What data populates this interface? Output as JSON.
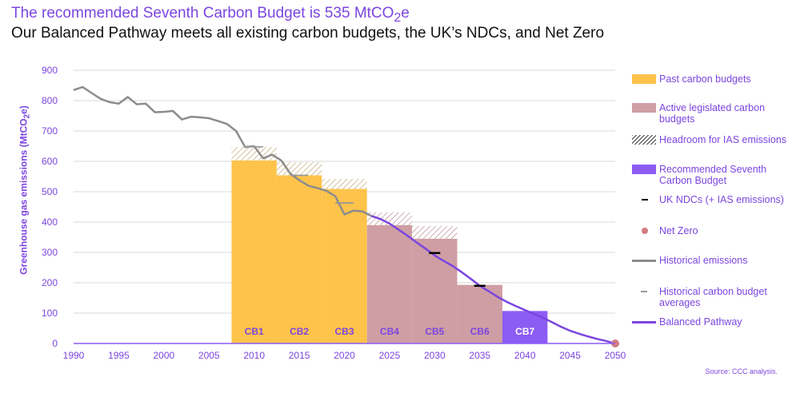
{
  "header": {
    "title_html": "The recommended Seventh Carbon Budget is 535 MtCO<sub>2</sub>e",
    "subtitle": "Our Balanced Pathway meets all existing carbon budgets, the UK’s NDCs, and Net Zero",
    "source": "Source: CCC analysis."
  },
  "chart_data": {
    "type": "bar",
    "title": "The recommended Seventh Carbon Budget is 535 MtCO2e",
    "ylabel_html": "Greenhouse gas emissions (MtCO<sub>2</sub>e)",
    "xlim": [
      1990,
      2050
    ],
    "ylim": [
      0,
      900
    ],
    "x_ticks": [
      "1990",
      "1995",
      "2000",
      "2005",
      "2010",
      "2015",
      "2020",
      "2025",
      "2030",
      "2035",
      "2040",
      "2045",
      "2050"
    ],
    "y_ticks": [
      "0",
      "100",
      "200",
      "300",
      "400",
      "500",
      "600",
      "700",
      "800",
      "900"
    ],
    "grid": true,
    "legend_position": "right",
    "colors": {
      "past": "#fdc34a",
      "active": "#cf9ea4",
      "recommended": "#8c5cf5",
      "historical": "#8c8c8c",
      "balanced": "#7b45e0",
      "ndc": "#000000",
      "netzero": "#d27b80",
      "budget_label": "#7b45e0",
      "budget_label_cb7": "#ffffff"
    },
    "budgets": [
      {
        "label": "CB1",
        "start": 2008,
        "end": 2012,
        "value": 603,
        "headroom": 44,
        "category": "past"
      },
      {
        "label": "CB2",
        "start": 2013,
        "end": 2017,
        "value": 554,
        "headroom": 43,
        "category": "past"
      },
      {
        "label": "CB3",
        "start": 2018,
        "end": 2022,
        "value": 509,
        "headroom": 33,
        "category": "past"
      },
      {
        "label": "CB4",
        "start": 2023,
        "end": 2027,
        "value": 390,
        "headroom": 42,
        "category": "active"
      },
      {
        "label": "CB5",
        "start": 2028,
        "end": 2032,
        "value": 345,
        "headroom": 42,
        "category": "active"
      },
      {
        "label": "CB6",
        "start": 2033,
        "end": 2037,
        "value": 193,
        "headroom": 0,
        "category": "active"
      },
      {
        "label": "CB7",
        "start": 2038,
        "end": 2042,
        "value": 107,
        "headroom": 0,
        "category": "recommended"
      }
    ],
    "historical_emissions": {
      "x": [
        1990,
        1991,
        1992,
        1993,
        1994,
        1995,
        1996,
        1997,
        1998,
        1999,
        2000,
        2001,
        2002,
        2003,
        2004,
        2005,
        2006,
        2007,
        2008,
        2009,
        2010,
        2011,
        2012,
        2013,
        2014,
        2015,
        2016,
        2017,
        2018,
        2019,
        2020,
        2021,
        2022,
        2023
      ],
      "y": [
        835,
        845,
        825,
        806,
        795,
        790,
        812,
        788,
        790,
        762,
        763,
        766,
        738,
        747,
        745,
        742,
        733,
        723,
        700,
        647,
        650,
        610,
        622,
        603,
        560,
        538,
        520,
        512,
        503,
        485,
        425,
        438,
        435,
        420
      ]
    },
    "historical_budget_averages": [
      {
        "start": 2009,
        "end": 2011,
        "value": 648
      },
      {
        "start": 2014,
        "end": 2016,
        "value": 554
      },
      {
        "start": 2019,
        "end": 2021,
        "value": 463
      }
    ],
    "ndcs": [
      {
        "x": 2030,
        "y": 298
      },
      {
        "x": 2035,
        "y": 190
      }
    ],
    "net_zero": {
      "x": 2050,
      "y": 0
    },
    "balanced_pathway": {
      "x": [
        2023,
        2024,
        2025,
        2026,
        2027,
        2028,
        2029,
        2030,
        2031,
        2032,
        2033,
        2034,
        2035,
        2036,
        2037,
        2038,
        2039,
        2040,
        2041,
        2042,
        2043,
        2044,
        2045,
        2046,
        2047,
        2048,
        2049,
        2050
      ],
      "y": [
        420,
        410,
        395,
        375,
        355,
        333,
        312,
        290,
        272,
        255,
        235,
        213,
        190,
        172,
        153,
        137,
        123,
        110,
        97,
        85,
        70,
        55,
        42,
        32,
        23,
        15,
        8,
        0
      ]
    }
  },
  "legend": [
    {
      "swatch": "sw-orange",
      "text": "Past carbon budgets"
    },
    {
      "swatch": "sw-pink",
      "text": "Active legislated carbon budgets"
    },
    {
      "swatch": "sw-hatch",
      "text": "Headroom for IAS emissions"
    },
    {
      "swatch": "sw-purple",
      "text": "Recommended Seventh Carbon Budget"
    },
    {
      "swatch": "sw-ndc",
      "text": "UK NDCs (+ IAS emissions)"
    },
    {
      "swatch": "sw-netzero",
      "text": "Net Zero"
    },
    {
      "swatch": "sw-hist",
      "text": "Historical emissions"
    },
    {
      "swatch": "sw-histbud",
      "text": "Historical carbon budget averages"
    },
    {
      "swatch": "sw-bp",
      "text": "Balanced Pathway"
    }
  ]
}
